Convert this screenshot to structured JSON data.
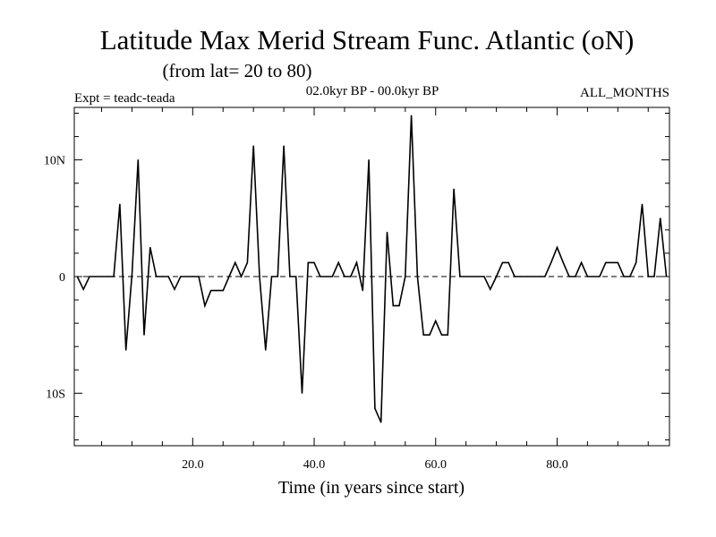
{
  "chart_data": {
    "type": "line",
    "title": "Latitude Max Merid Stream Func. Atlantic (oN)",
    "subtitle": "(from lat= 20 to 80)",
    "experiment": "Expt = teadc-teada",
    "period": "02.0kyr BP - 00.0kyr BP",
    "months": "ALL_MONTHS",
    "xlabel": "Time (in years since start)",
    "ylabel": "",
    "xlim": [
      0.5,
      98.5
    ],
    "ylim": [
      -14.5,
      14.5
    ],
    "x_ticks": [
      {
        "value": 20,
        "label": "20.0"
      },
      {
        "value": 40,
        "label": "40.0"
      },
      {
        "value": 60,
        "label": "60.0"
      },
      {
        "value": 80,
        "label": "80.0"
      }
    ],
    "y_ticks": [
      {
        "value": 10,
        "label": "10N"
      },
      {
        "value": 0,
        "label": "0"
      },
      {
        "value": -10,
        "label": "10S"
      }
    ],
    "zero_line": true,
    "series": [
      {
        "name": "Latitude Max Merid Stream Func.",
        "x": [
          1,
          2,
          3,
          4,
          5,
          6,
          7,
          8,
          9,
          10,
          11,
          12,
          13,
          14,
          15,
          16,
          17,
          18,
          19,
          20,
          21,
          22,
          23,
          24,
          25,
          26,
          27,
          28,
          29,
          30,
          31,
          32,
          33,
          34,
          35,
          36,
          37,
          38,
          39,
          40,
          41,
          42,
          43,
          44,
          45,
          46,
          47,
          48,
          49,
          50,
          51,
          52,
          53,
          54,
          55,
          56,
          57,
          58,
          59,
          60,
          61,
          62,
          63,
          64,
          65,
          66,
          67,
          68,
          69,
          70,
          71,
          72,
          73,
          74,
          75,
          76,
          77,
          78,
          79,
          80,
          81,
          82,
          83,
          84,
          85,
          86,
          87,
          88,
          89,
          90,
          91,
          92,
          93,
          94,
          95,
          96,
          97,
          98
        ],
        "y": [
          0,
          -1.1,
          0,
          0,
          0,
          0,
          0,
          6.2,
          -6.3,
          0.2,
          10,
          -5,
          2.5,
          0,
          0,
          0,
          -1.1,
          0,
          0,
          0,
          0,
          -2.5,
          -1.2,
          -1.2,
          -1.2,
          0,
          1.2,
          0,
          1.2,
          11.2,
          0,
          -6.3,
          0,
          0,
          11.2,
          0,
          0,
          -10,
          1.2,
          1.2,
          0,
          0,
          0,
          1.2,
          0,
          0,
          1.2,
          -1.2,
          10,
          -11.3,
          -12.5,
          3.8,
          -2.5,
          -2.5,
          0,
          13.8,
          0,
          -5,
          -5,
          -3.8,
          -5,
          -5,
          7.5,
          0,
          0,
          0,
          0,
          0,
          -1.1,
          0,
          1.2,
          1.2,
          0,
          0,
          0,
          0,
          0,
          0,
          1.2,
          2.5,
          1.2,
          0,
          0,
          1.2,
          0,
          0,
          0,
          1.2,
          1.2,
          1.2,
          0,
          0,
          1.2,
          6.2,
          0,
          0,
          5,
          0
        ]
      }
    ]
  }
}
